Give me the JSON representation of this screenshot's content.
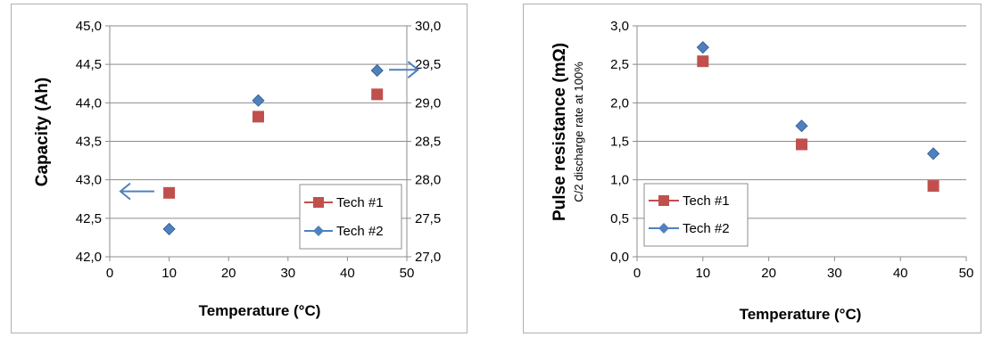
{
  "colors": {
    "tech1": "#c0504d",
    "tech2": "#4f81bd",
    "arrow": "#4f81bd",
    "grid": "#8c8c8c"
  },
  "chart_data": [
    {
      "type": "scatter",
      "xlabel": "Temperature (°C)",
      "ylabel": "Capacity (Ah)",
      "xlim": [
        0,
        50
      ],
      "ylim": [
        42.0,
        45.0
      ],
      "y2lim": [
        27.0,
        30.0
      ],
      "xticks": [
        "0",
        "10",
        "20",
        "30",
        "40",
        "50"
      ],
      "yticks": [
        "42,0",
        "42,5",
        "43,0",
        "43,5",
        "44,0",
        "44,5",
        "45,0"
      ],
      "y2ticks": [
        "27,0",
        "27,5",
        "28,0",
        "28,5",
        "29,0",
        "29,5",
        "30,0"
      ],
      "grid": true,
      "legend": "bottom-right",
      "series": [
        {
          "name": "Tech #1",
          "marker": "square",
          "axis": "left",
          "x": [
            10,
            25,
            45
          ],
          "y": [
            42.83,
            43.82,
            44.11
          ]
        },
        {
          "name": "Tech #2",
          "marker": "diamond",
          "axis": "right",
          "x": [
            10,
            25,
            45
          ],
          "y": [
            27.36,
            29.03,
            29.42
          ]
        }
      ],
      "annotations": [
        {
          "type": "arrow",
          "direction": "left",
          "meaning": "Tech #1 uses left axis"
        },
        {
          "type": "arrow",
          "direction": "right",
          "meaning": "Tech #2 uses right axis"
        }
      ]
    },
    {
      "type": "scatter",
      "xlabel": "Temperature (°C)",
      "ylabel": "Pulse resistance (mΩ)",
      "ylabel_sub": "C/2 discharge rate at 100%",
      "xlim": [
        0,
        50
      ],
      "ylim": [
        0.0,
        3.0
      ],
      "xticks": [
        "0",
        "10",
        "20",
        "30",
        "40",
        "50"
      ],
      "yticks": [
        "0,0",
        "0,5",
        "1,0",
        "1,5",
        "2,0",
        "2,5",
        "3,0"
      ],
      "grid": true,
      "legend": "bottom-left",
      "series": [
        {
          "name": "Tech #1",
          "marker": "square",
          "x": [
            10,
            25,
            45
          ],
          "y": [
            2.54,
            1.46,
            0.92
          ]
        },
        {
          "name": "Tech #2",
          "marker": "diamond",
          "x": [
            10,
            25,
            45
          ],
          "y": [
            2.72,
            1.7,
            1.34
          ]
        }
      ]
    }
  ]
}
